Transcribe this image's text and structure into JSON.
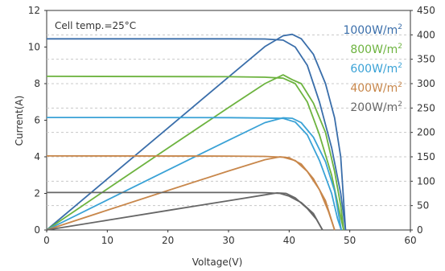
{
  "chart_data": {
    "type": "line",
    "annotation": "Cell temp.=25°C",
    "xlabel": "Voltage(V)",
    "ylabel": "Current(A)",
    "xlim": [
      0,
      60
    ],
    "ylim_left": [
      0,
      12
    ],
    "ylim_right": [
      0,
      450
    ],
    "x_ticks": [
      "0",
      "10",
      "20",
      "30",
      "40",
      "50",
      "60"
    ],
    "y_left_ticks": [
      "0",
      "2",
      "4",
      "6",
      "8",
      "10",
      "12"
    ],
    "y_right_ticks": [
      "0",
      "50",
      "100",
      "150",
      "200",
      "250",
      "300",
      "350",
      "400",
      "450"
    ],
    "legend_position": "top-right",
    "series": [
      {
        "legend": "1000W/m",
        "superscript": "2",
        "color": "#3a6eaa",
        "iv": [
          [
            0,
            10.45
          ],
          [
            30,
            10.45
          ],
          [
            36,
            10.44
          ],
          [
            39,
            10.38
          ],
          [
            41,
            10.0
          ],
          [
            43,
            9.0
          ],
          [
            45,
            7.0
          ],
          [
            47,
            4.5
          ],
          [
            48.5,
            2.0
          ],
          [
            49.3,
            0
          ]
        ],
        "pv": [
          [
            0,
            0
          ],
          [
            10,
            104.5
          ],
          [
            20,
            209
          ],
          [
            30,
            313.5
          ],
          [
            36,
            376
          ],
          [
            39,
            398
          ],
          [
            40.5,
            401
          ],
          [
            42,
            392
          ],
          [
            44,
            360
          ],
          [
            46,
            300
          ],
          [
            47.5,
            230
          ],
          [
            48.5,
            150
          ],
          [
            49.3,
            0
          ]
        ]
      },
      {
        "legend": "800W/m",
        "superscript": "2",
        "color": "#6db33f",
        "iv": [
          [
            0,
            8.4
          ],
          [
            30,
            8.38
          ],
          [
            36,
            8.35
          ],
          [
            39,
            8.3
          ],
          [
            41,
            8.0
          ],
          [
            43,
            7.0
          ],
          [
            45,
            5.2
          ],
          [
            47,
            3.0
          ],
          [
            48.3,
            1.0
          ],
          [
            49.0,
            0
          ]
        ],
        "pv": [
          [
            0,
            0
          ],
          [
            10,
            84
          ],
          [
            20,
            168
          ],
          [
            30,
            251
          ],
          [
            36,
            300
          ],
          [
            39,
            318
          ],
          [
            40.5,
            308
          ],
          [
            42,
            300
          ],
          [
            44,
            260
          ],
          [
            46,
            200
          ],
          [
            47.5,
            120
          ],
          [
            48.5,
            50
          ],
          [
            49.0,
            0
          ]
        ]
      },
      {
        "legend": "600W/m",
        "superscript": "2",
        "color": "#3aa2d6",
        "iv": [
          [
            0,
            6.15
          ],
          [
            30,
            6.14
          ],
          [
            36,
            6.12
          ],
          [
            39,
            6.1
          ],
          [
            41,
            5.9
          ],
          [
            43,
            5.2
          ],
          [
            45,
            3.8
          ],
          [
            47,
            2.0
          ],
          [
            48.0,
            0.6
          ],
          [
            48.6,
            0
          ]
        ],
        "pv": [
          [
            0,
            0
          ],
          [
            10,
            61.5
          ],
          [
            20,
            123
          ],
          [
            30,
            184
          ],
          [
            36,
            220
          ],
          [
            39,
            230
          ],
          [
            40.5,
            229
          ],
          [
            42,
            220
          ],
          [
            44,
            190
          ],
          [
            46,
            140
          ],
          [
            47.5,
            80
          ],
          [
            48.6,
            0
          ]
        ]
      },
      {
        "legend": "400W/m",
        "superscript": "2",
        "color": "#c8874b",
        "iv": [
          [
            0,
            4.05
          ],
          [
            30,
            4.04
          ],
          [
            36,
            4.02
          ],
          [
            39,
            3.98
          ],
          [
            41,
            3.8
          ],
          [
            43,
            3.2
          ],
          [
            45,
            2.2
          ],
          [
            46.5,
            1.0
          ],
          [
            47.5,
            0
          ]
        ],
        "pv": [
          [
            0,
            0
          ],
          [
            10,
            40.5
          ],
          [
            20,
            81
          ],
          [
            30,
            121
          ],
          [
            36,
            144
          ],
          [
            38.5,
            150
          ],
          [
            40,
            148
          ],
          [
            42,
            135
          ],
          [
            44,
            105
          ],
          [
            46,
            60
          ],
          [
            47.5,
            0
          ]
        ]
      },
      {
        "legend": "200W/m",
        "superscript": "2",
        "color": "#666666",
        "iv": [
          [
            0,
            2.05
          ],
          [
            30,
            2.05
          ],
          [
            36,
            2.04
          ],
          [
            38.5,
            2.0
          ],
          [
            40,
            1.85
          ],
          [
            42,
            1.5
          ],
          [
            44,
            0.9
          ],
          [
            45.5,
            0
          ]
        ],
        "pv": [
          [
            0,
            0
          ],
          [
            10,
            20
          ],
          [
            20,
            40
          ],
          [
            30,
            60
          ],
          [
            36,
            72
          ],
          [
            38,
            76
          ],
          [
            39.5,
            75
          ],
          [
            41,
            66
          ],
          [
            43,
            44
          ],
          [
            44.5,
            22
          ],
          [
            45.5,
            0
          ]
        ]
      }
    ]
  }
}
